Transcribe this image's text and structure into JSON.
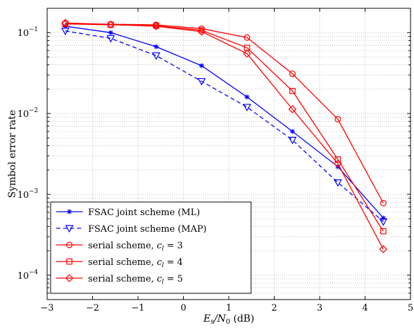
{
  "chart_data": {
    "type": "line",
    "xlabel_parts": {
      "main": "E",
      "sub1": "s",
      "mid": "/N",
      "sub2": "0",
      "unit": " (dB)"
    },
    "ylabel": "Symbol error rate",
    "xlim": [
      -3,
      5
    ],
    "ylim": [
      5e-05,
      0.2
    ],
    "yscale": "log",
    "grid": true,
    "legend_position": "bottom-left",
    "x_ticks": [
      "−3",
      "−2",
      "−1",
      "0",
      "1",
      "2",
      "3",
      "4",
      "5"
    ],
    "y_ticks": [
      {
        "value": 0.1,
        "label": "10",
        "exp": "−1"
      },
      {
        "value": 0.01,
        "label": "10",
        "exp": "−2"
      },
      {
        "value": 0.001,
        "label": "10",
        "exp": "−3"
      },
      {
        "value": 0.0001,
        "label": "10",
        "exp": "−4"
      }
    ],
    "series": [
      {
        "name": "FSAC joint scheme (ML)",
        "color": "#0000ff",
        "dash": "solid",
        "marker": "star",
        "x": [
          -2.6,
          -1.6,
          -0.6,
          0.4,
          1.4,
          2.4,
          3.4,
          4.4
        ],
        "y": [
          0.12,
          0.1,
          0.067,
          0.039,
          0.016,
          0.006,
          0.0022,
          0.00051
        ]
      },
      {
        "name": "FSAC joint scheme (MAP)",
        "color": "#0000ff",
        "dash": "dashed",
        "marker": "triangle-down",
        "x": [
          -2.6,
          -1.6,
          -0.6,
          0.4,
          1.4,
          2.4,
          3.4,
          4.4
        ],
        "y": [
          0.105,
          0.085,
          0.052,
          0.025,
          0.012,
          0.0047,
          0.0014,
          0.00046
        ]
      },
      {
        "name": "serial scheme, c_l = 3",
        "label_main": "serial scheme, ",
        "label_var": "c",
        "label_sub": "l",
        "label_rest": " = 3",
        "color": "#ff0000",
        "dash": "solid",
        "marker": "circle",
        "x": [
          -2.6,
          -1.6,
          -0.6,
          0.4,
          1.4,
          2.4,
          3.4,
          4.4
        ],
        "y": [
          0.13,
          0.127,
          0.125,
          0.112,
          0.087,
          0.031,
          0.0085,
          0.00078
        ]
      },
      {
        "name": "serial scheme, c_l = 4",
        "label_main": "serial scheme, ",
        "label_var": "c",
        "label_sub": "l",
        "label_rest": " = 4",
        "color": "#ff0000",
        "dash": "solid",
        "marker": "square",
        "x": [
          -2.6,
          -1.6,
          -0.6,
          0.4,
          1.4,
          2.4,
          3.4,
          4.4
        ],
        "y": [
          0.128,
          0.125,
          0.122,
          0.107,
          0.065,
          0.019,
          0.0027,
          0.00035
        ]
      },
      {
        "name": "serial scheme, c_l = 5",
        "label_main": "serial scheme, ",
        "label_var": "c",
        "label_sub": "l",
        "label_rest": " = 5",
        "color": "#ff0000",
        "dash": "solid",
        "marker": "diamond",
        "x": [
          -2.6,
          -1.6,
          -0.6,
          0.4,
          1.4,
          2.4,
          3.4,
          4.4
        ],
        "y": [
          0.132,
          0.126,
          0.12,
          0.103,
          0.055,
          0.0113,
          0.0024,
          0.00021
        ]
      }
    ]
  }
}
